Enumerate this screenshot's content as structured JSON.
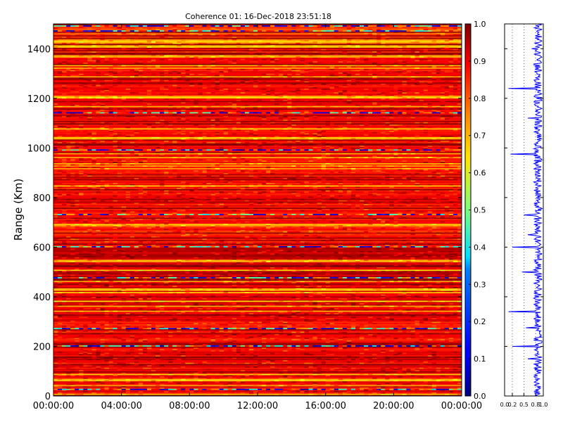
{
  "chart_data": [
    {
      "type": "heatmap",
      "title": "Coherence 01: 16-Dec-2018 23:51:18",
      "xlabel": "",
      "ylabel": "Range (Km)",
      "xlim": [
        "00:00:00",
        "24:00:00"
      ],
      "ylim": [
        0,
        1500
      ],
      "xticks": [
        "00:00:00",
        "04:00:00",
        "08:00:00",
        "12:00:00",
        "16:00:00",
        "20:00:00",
        "00:00:00"
      ],
      "yticks": [
        0,
        200,
        400,
        600,
        800,
        1000,
        1200,
        1400
      ],
      "colorbar": {
        "colormap": "jet",
        "range": [
          0.0,
          1.0
        ],
        "ticks": [
          "0.0",
          "0.1",
          "0.2",
          "0.3",
          "0.4",
          "0.5",
          "0.6",
          "0.7",
          "0.8",
          "0.9",
          "1.0"
        ]
      },
      "rows_approx_range_km": [
        {
          "range": [
            0,
            200
          ],
          "coherence": 0.88
        },
        {
          "range": [
            200,
            300
          ],
          "coherence": 0.86
        },
        {
          "range": [
            300,
            460
          ],
          "coherence": 0.9
        },
        {
          "range": [
            460,
            600
          ],
          "coherence": 0.92
        },
        {
          "range": [
            600,
            720
          ],
          "coherence": 0.85
        },
        {
          "range": [
            720,
            1000
          ],
          "coherence": 0.87
        },
        {
          "range": [
            1000,
            1150
          ],
          "coherence": 0.88
        },
        {
          "range": [
            1150,
            1400
          ],
          "coherence": 0.87
        },
        {
          "range": [
            1400,
            1500
          ],
          "coherence": 0.8
        }
      ],
      "low_coherence_ranges_km": [
        25,
        200,
        270,
        475,
        600,
        730,
        990,
        1140,
        1470,
        1490
      ],
      "colors": {
        "high": "#b00000",
        "mid_high": "#ff2a00",
        "mid": "#ffd400",
        "low_mid": "#30e0ff",
        "low": "#0000c0"
      }
    },
    {
      "type": "line",
      "title": "",
      "xlabel": "",
      "ylabel": "",
      "xlim": [
        0.0,
        1.0
      ],
      "ylim": [
        0,
        1500
      ],
      "xticks": [
        "0.0",
        "0.2",
        "0.5",
        "0.8",
        "1.0"
      ],
      "grid_x": [
        0.2,
        0.5,
        0.8
      ],
      "series": [
        {
          "color": "#0000ff",
          "x": [
            0.85,
            0.8,
            0.9,
            0.78,
            0.83,
            0.88,
            0.6,
            0.86,
            0.84,
            0.2,
            0.88,
            0.75,
            0.9,
            0.82,
            0.86,
            0.55,
            0.9,
            0.83,
            0.1,
            0.87,
            0.9,
            0.78,
            0.85,
            0.9,
            0.83,
            0.85,
            0.45,
            0.88,
            0.9,
            0.82,
            0.2,
            0.86,
            0.6,
            0.9,
            0.85,
            0.88,
            0.5,
            0.84,
            0.9,
            0.86,
            0.78,
            0.88,
            0.85,
            0.15,
            0.87,
            0.83,
            0.9,
            0.86,
            0.6,
            0.88,
            0.85,
            0.82,
            0.1,
            0.85,
            0.88,
            0.9,
            0.7,
            0.86,
            0.88,
            0.85,
            0.83,
            0.88,
            0.9
          ],
          "y": [
            0,
            25,
            50,
            75,
            100,
            125,
            150,
            175,
            195,
            200,
            205,
            225,
            250,
            265,
            270,
            275,
            300,
            320,
            340,
            360,
            400,
            420,
            440,
            460,
            475,
            480,
            500,
            520,
            560,
            580,
            600,
            620,
            650,
            680,
            700,
            720,
            730,
            740,
            780,
            820,
            860,
            900,
            940,
            975,
            990,
            1000,
            1040,
            1080,
            1120,
            1140,
            1150,
            1200,
            1240,
            1280,
            1320,
            1360,
            1400,
            1420,
            1440,
            1460,
            1470,
            1490,
            1500
          ]
        }
      ]
    }
  ]
}
